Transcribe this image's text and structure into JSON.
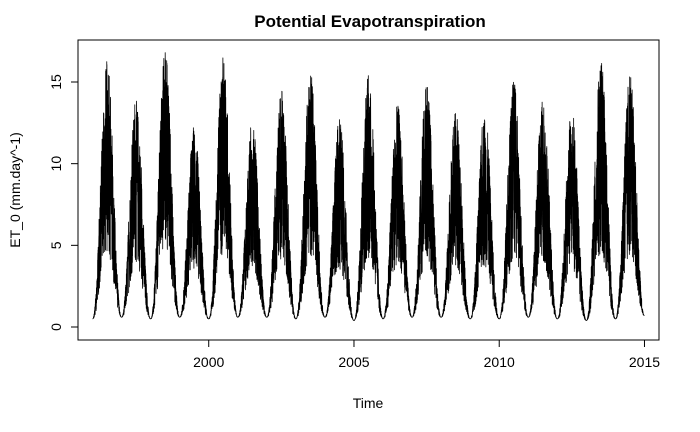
{
  "chart_data": {
    "type": "line",
    "title": "Potential Evapotranspiration",
    "xlabel": "Time",
    "ylabel": "ET_0 (mm.day^-1)",
    "xlim": [
      1995.5,
      2015.5
    ],
    "ylim": [
      0,
      17
    ],
    "x_ticks": [
      2000,
      2005,
      2010,
      2015
    ],
    "y_ticks": [
      0,
      5,
      10,
      15
    ],
    "grid": false,
    "series": [
      {
        "color": "#000000",
        "x_start": 1996.0,
        "x_end": 2015.0,
        "annual_min": [
          0.5,
          0.6,
          0.5,
          0.6,
          0.5,
          0.6,
          0.6,
          0.5,
          0.6,
          0.4,
          0.5,
          0.6,
          0.6,
          0.5,
          0.5,
          0.6,
          0.5,
          0.4,
          0.5,
          0.7
        ],
        "annual_peak": [
          16.3,
          13.9,
          16.8,
          12.3,
          16.5,
          12.6,
          14.5,
          15.6,
          12.7,
          15.4,
          13.6,
          14.8,
          13.1,
          13.3,
          15.0,
          14.1,
          13.3,
          16.3,
          15.4
        ]
      }
    ]
  }
}
